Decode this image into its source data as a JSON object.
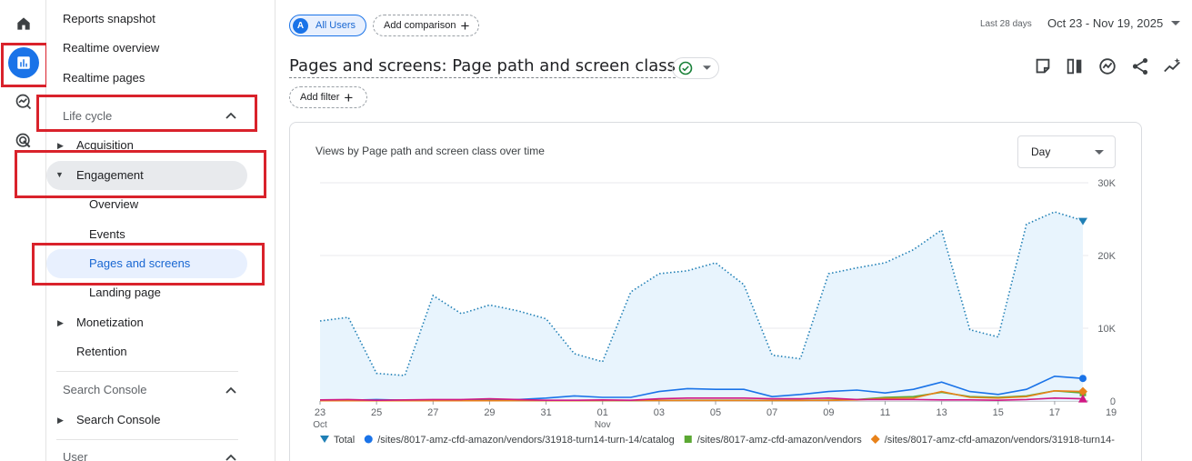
{
  "nav": {
    "reports_snapshot": "Reports snapshot",
    "realtime_overview": "Realtime overview",
    "realtime_pages": "Realtime pages",
    "section_lifecycle": "Life cycle",
    "acquisition": "Acquisition",
    "engagement": "Engagement",
    "overview": "Overview",
    "events": "Events",
    "pages_and_screens": "Pages and screens",
    "landing_page": "Landing page",
    "monetization": "Monetization",
    "retention": "Retention",
    "section_search_console": "Search Console",
    "search_console": "Search Console",
    "section_user": "User"
  },
  "header": {
    "segment_avatar": "A",
    "segment_label": "All Users",
    "add_comparison": "Add comparison",
    "date_range_label": "Last 28 days",
    "date_range": "Oct 23 - Nov 19, 2025",
    "title": "Pages and screens: Page path and screen class",
    "add_filter": "Add filter"
  },
  "card": {
    "title": "Views by Page path and screen class over time",
    "interval": "Day"
  },
  "chart_data": {
    "type": "line",
    "x": [
      "Oct 23",
      "Oct 24",
      "Oct 25",
      "Oct 26",
      "Oct 27",
      "Oct 28",
      "Oct 29",
      "Oct 30",
      "Oct 31",
      "Nov 01",
      "Nov 02",
      "Nov 03",
      "Nov 04",
      "Nov 05",
      "Nov 06",
      "Nov 07",
      "Nov 08",
      "Nov 09",
      "Nov 10",
      "Nov 11",
      "Nov 12",
      "Nov 13",
      "Nov 14",
      "Nov 15",
      "Nov 16",
      "Nov 17",
      "Nov 18",
      "Nov 19"
    ],
    "x_tick_labels": [
      "23",
      "25",
      "27",
      "29",
      "31",
      "01",
      "03",
      "05",
      "07",
      "09",
      "11",
      "13",
      "15",
      "17",
      "19"
    ],
    "x_tick_sublabels": {
      "23": "Oct",
      "01": "Nov"
    },
    "y_ticks": [
      "0",
      "10K",
      "20K",
      "30K"
    ],
    "ylim": [
      0,
      30000
    ],
    "series": [
      {
        "name": "Total",
        "color": "#1f7fb5",
        "style": "dotted-area",
        "values": [
          11000,
          11500,
          3800,
          3500,
          14500,
          12000,
          13200,
          12400,
          11300,
          6500,
          5400,
          15000,
          17500,
          17900,
          19000,
          16000,
          6300,
          5800,
          17500,
          18300,
          19000,
          20800,
          23500,
          9800,
          8800,
          24300,
          26000,
          24800
        ]
      },
      {
        "name": "/sites/8017-amz-cfd-amazon/vendors/31918-turn14-turn-14/catalog",
        "color": "#1a73e8",
        "style": "solid",
        "values": [
          100,
          100,
          200,
          100,
          100,
          100,
          200,
          200,
          400,
          700,
          500,
          500,
          1300,
          1700,
          1600,
          1600,
          600,
          900,
          1300,
          1500,
          1100,
          1600,
          2600,
          1300,
          900,
          1600,
          3400,
          3100
        ]
      },
      {
        "name": "/sites/8017-amz-cfd-amazon/vendors",
        "color": "#5ba833",
        "style": "solid",
        "values": [
          50,
          50,
          50,
          50,
          50,
          60,
          60,
          60,
          60,
          70,
          80,
          80,
          90,
          100,
          100,
          100,
          80,
          90,
          120,
          200,
          500,
          600,
          1200,
          600,
          500,
          700,
          1400,
          1100
        ]
      },
      {
        "name": "/sites/8017-amz-cfd-amazon/vendors/31918-turn14-",
        "color": "#e8821a",
        "style": "solid",
        "values": [
          40,
          40,
          40,
          40,
          40,
          40,
          40,
          50,
          50,
          50,
          60,
          60,
          70,
          70,
          80,
          80,
          60,
          70,
          90,
          150,
          350,
          400,
          1300,
          500,
          400,
          600,
          1400,
          1300
        ]
      },
      {
        "name": "",
        "color": "#d01884",
        "style": "solid",
        "values": [
          150,
          200,
          100,
          150,
          200,
          200,
          300,
          200,
          100,
          100,
          150,
          100,
          300,
          400,
          400,
          400,
          300,
          300,
          400,
          200,
          200,
          200,
          150,
          150,
          100,
          200,
          400,
          300
        ]
      }
    ]
  }
}
